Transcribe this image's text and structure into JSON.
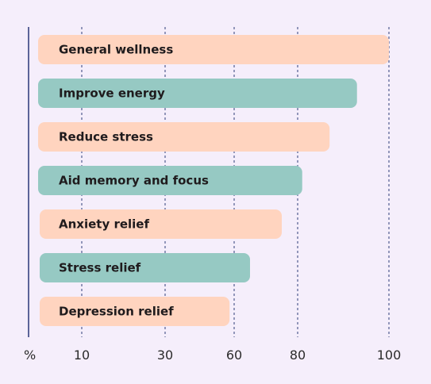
{
  "chart_data": {
    "type": "bar",
    "orientation": "horizontal",
    "title": "",
    "xlabel": "",
    "ylabel": "",
    "axis_unit_label": "%",
    "x_ticks": [
      10,
      30,
      60,
      80,
      100
    ],
    "categories": [
      "General wellness",
      "Improve energy",
      "Reduce stress",
      "Aid memory and focus",
      "Anxiety relief",
      "Stress relief",
      "Depression relief"
    ],
    "values": [
      100,
      93,
      87,
      81,
      75,
      65,
      58
    ],
    "bar_colors": [
      "#ffd4bf",
      "#96c9c3",
      "#ffd4bf",
      "#96c9c3",
      "#ffd4bf",
      "#96c9c3",
      "#ffd4bf"
    ],
    "grid": "dashed vertical",
    "legend": "none"
  }
}
